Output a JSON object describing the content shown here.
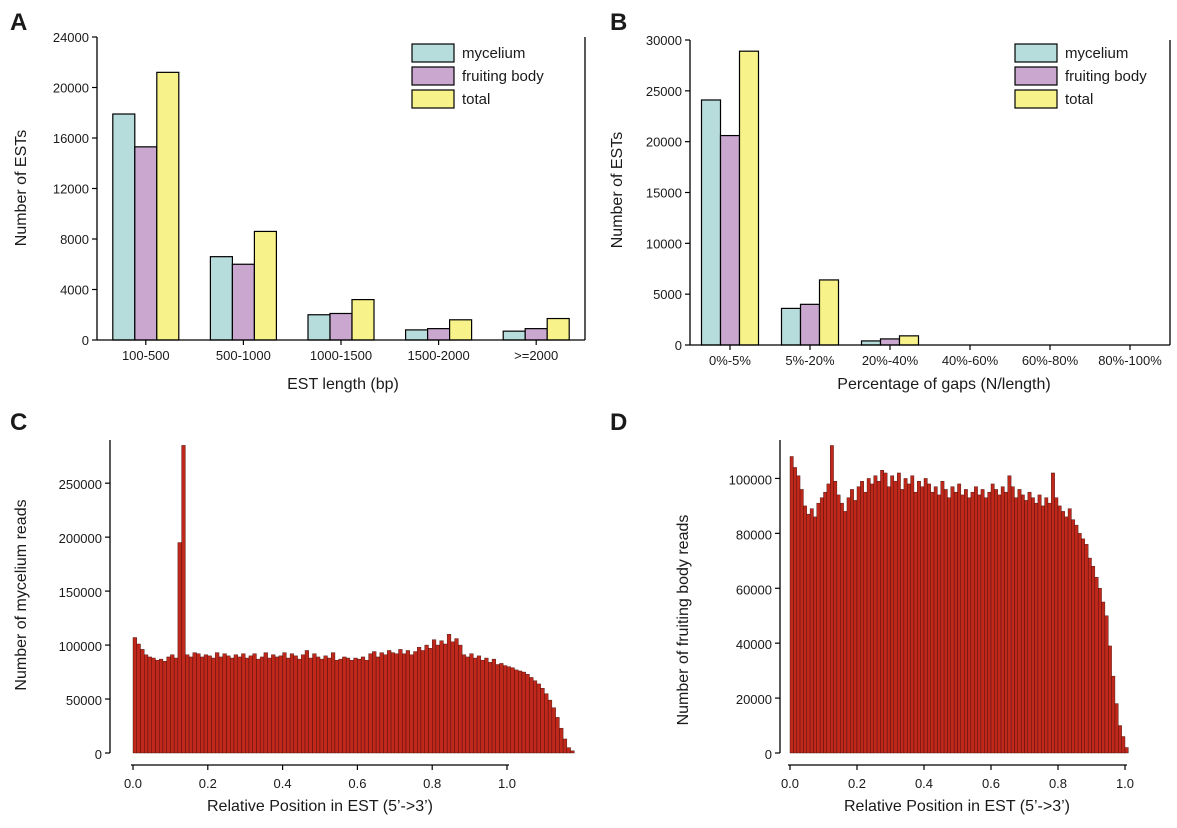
{
  "chart_data": [
    {
      "id": "A",
      "panel_label": "A",
      "type": "bar",
      "categories": [
        "100-500",
        "500-1000",
        "1000-1500",
        "1500-2000",
        ">=2000"
      ],
      "series": [
        {
          "name": "mycelium",
          "values": [
            17900,
            6600,
            2000,
            800,
            700
          ],
          "color": "#b7dcdc"
        },
        {
          "name": "fruiting body",
          "values": [
            15300,
            6000,
            2100,
            900,
            900
          ],
          "color": "#c9a7cf"
        },
        {
          "name": "total",
          "values": [
            21200,
            8600,
            3200,
            1600,
            1700
          ],
          "color": "#f7f38a"
        }
      ],
      "xlabel": "EST length (bp)",
      "ylabel": "Number of ESTs",
      "ylim": [
        0,
        24000
      ],
      "yticks": [
        0,
        4000,
        8000,
        12000,
        16000,
        20000,
        24000
      ],
      "grid": false,
      "legend": "top-right"
    },
    {
      "id": "B",
      "panel_label": "B",
      "type": "bar",
      "categories": [
        "0%-5%",
        "5%-20%",
        "20%-40%",
        "40%-60%",
        "60%-80%",
        "80%-100%"
      ],
      "series": [
        {
          "name": "mycelium",
          "values": [
            24100,
            3600,
            400,
            0,
            0,
            0
          ],
          "color": "#b7dcdc"
        },
        {
          "name": "fruiting body",
          "values": [
            20600,
            4000,
            600,
            0,
            0,
            0
          ],
          "color": "#c9a7cf"
        },
        {
          "name": "total",
          "values": [
            28900,
            6400,
            900,
            0,
            0,
            0
          ],
          "color": "#f7f38a"
        }
      ],
      "xlabel": "Percentage of gaps (N/length)",
      "ylabel": "Number of ESTs",
      "ylim": [
        0,
        30000
      ],
      "yticks": [
        0,
        5000,
        10000,
        15000,
        20000,
        25000,
        30000
      ],
      "grid": false,
      "legend": "top-right"
    },
    {
      "id": "C",
      "panel_label": "C",
      "type": "bar",
      "bar_color": "#c0281c",
      "x_start": 0.0,
      "bin_width": 0.01,
      "values": [
        107000,
        101000,
        96000,
        91000,
        89000,
        88000,
        86000,
        87000,
        85000,
        89000,
        91000,
        88000,
        195000,
        285000,
        91000,
        89000,
        93000,
        92000,
        89000,
        91000,
        90000,
        88000,
        93000,
        89000,
        92000,
        90000,
        88000,
        91000,
        89000,
        92000,
        88000,
        90000,
        92000,
        87000,
        89000,
        93000,
        88000,
        91000,
        89000,
        90000,
        93000,
        88000,
        92000,
        90000,
        87000,
        91000,
        95000,
        88000,
        92000,
        89000,
        87000,
        90000,
        88000,
        93000,
        86000,
        87000,
        89000,
        88000,
        86000,
        88000,
        87000,
        89000,
        86000,
        92000,
        94000,
        89000,
        93000,
        91000,
        95000,
        93000,
        92000,
        96000,
        92000,
        95000,
        91000,
        94000,
        98000,
        95000,
        100000,
        97000,
        105000,
        100000,
        104000,
        101000,
        110000,
        103000,
        106000,
        100000,
        91000,
        89000,
        92000,
        88000,
        90000,
        86000,
        88000,
        84000,
        87000,
        82000,
        83000,
        81000,
        80000,
        79000,
        77000,
        76000,
        75000,
        73000,
        70000,
        67000,
        64000,
        60000,
        55000,
        49000,
        42000,
        33000,
        23000,
        13000,
        5000,
        2000
      ],
      "xlabel": "Relative Position in EST (5’->3’)",
      "ylabel": "Number of mycelium reads",
      "xlim": [
        0,
        1.0
      ],
      "xticks": [
        "0.0",
        "0.2",
        "0.4",
        "0.6",
        "0.8",
        "1.0"
      ],
      "ylim": [
        0,
        290000
      ],
      "yticks": [
        0,
        50000,
        100000,
        150000,
        200000,
        250000
      ],
      "grid": false
    },
    {
      "id": "D",
      "panel_label": "D",
      "type": "bar",
      "bar_color": "#c0281c",
      "x_start": 0.0,
      "bin_width": 0.01,
      "values": [
        108000,
        104000,
        101000,
        96000,
        90000,
        87000,
        89000,
        86000,
        91000,
        93000,
        95000,
        98000,
        112000,
        99000,
        94000,
        91000,
        88000,
        93000,
        96000,
        92000,
        97000,
        99000,
        95000,
        100000,
        98000,
        101000,
        99000,
        103000,
        102000,
        97000,
        101000,
        99000,
        102000,
        96000,
        100000,
        98000,
        101000,
        95000,
        99000,
        97000,
        100000,
        98000,
        95000,
        97000,
        94000,
        99000,
        96000,
        93000,
        97000,
        95000,
        98000,
        94000,
        96000,
        93000,
        95000,
        97000,
        94000,
        96000,
        93000,
        95000,
        98000,
        96000,
        94000,
        97000,
        95000,
        101000,
        97000,
        93000,
        96000,
        94000,
        92000,
        95000,
        93000,
        91000,
        94000,
        90000,
        93000,
        91000,
        102000,
        93000,
        90000,
        88000,
        86000,
        89000,
        85000,
        83000,
        80000,
        78000,
        76000,
        71000,
        68000,
        64000,
        60000,
        55000,
        50000,
        39000,
        28000,
        18000,
        10000,
        6000,
        2000
      ],
      "xlabel": "Relative Position in EST (5’->3’)",
      "ylabel": "Number of fruiting body reads",
      "xlim": [
        0,
        1.0
      ],
      "xticks": [
        "0.0",
        "0.2",
        "0.4",
        "0.6",
        "0.8",
        "1.0"
      ],
      "ylim": [
        0,
        114000
      ],
      "yticks": [
        0,
        20000,
        40000,
        60000,
        80000,
        100000
      ],
      "grid": false
    }
  ]
}
